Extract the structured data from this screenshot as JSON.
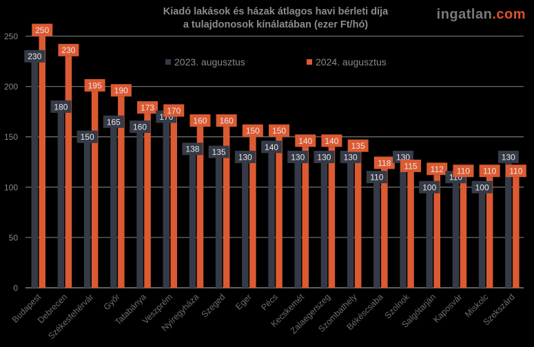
{
  "brand": {
    "part1": "ingatlan",
    "part2": ".com"
  },
  "colors": {
    "series2023": "#353a47",
    "series2024": "#dc5a32",
    "grid": "#6e6e6e",
    "axis_text": "#8a8a8a",
    "label_text": "#e8e8e8"
  },
  "chart_data": {
    "type": "bar",
    "title": "Kiadó lakások és házak átlagos havi bérleti díja",
    "subtitle": "a tulajdonosok kínálatában (ezer Ft/hó)",
    "xlabel": "",
    "ylabel": "",
    "ylim": [
      0,
      260
    ],
    "yticks": [
      0,
      50,
      100,
      150,
      200,
      250
    ],
    "grid": true,
    "legend_position": "top",
    "categories": [
      "Budapest",
      "Debrecen",
      "Székesfehérvár",
      "Győr",
      "Tatabánya",
      "Veszprém",
      "Nyíregyháza",
      "Szeged",
      "Eger",
      "Pécs",
      "Kecskemét",
      "Zalaegerszeg",
      "Szombathely",
      "Békéscsaba",
      "Szolnok",
      "Salgótarján",
      "Kaposvár",
      "Miskolc",
      "Szekszárd"
    ],
    "series": [
      {
        "name": "2023. augusztus",
        "values": [
          230,
          180,
          150,
          165,
          160,
          170,
          138,
          135,
          130,
          140,
          130,
          130,
          130,
          110,
          130,
          100,
          110,
          100,
          130
        ]
      },
      {
        "name": "2024. augusztus",
        "values": [
          250,
          230,
          195,
          190,
          173,
          170,
          160,
          160,
          150,
          150,
          140,
          140,
          135,
          118,
          115,
          112,
          110,
          110,
          110
        ]
      }
    ]
  }
}
